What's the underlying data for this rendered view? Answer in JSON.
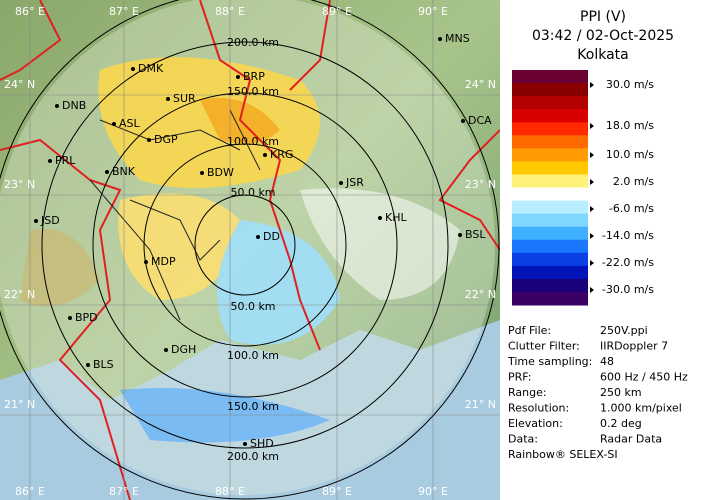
{
  "map": {
    "longitude_labels": [
      "86° E",
      "87° E",
      "88° E",
      "89° E",
      "90° E"
    ],
    "latitude_labels": [
      "24° N",
      "23° N",
      "22° N",
      "21° N"
    ],
    "range_labels_north": [
      "50.0 km",
      "100.0 km",
      "150.0 km",
      "200.0 km"
    ],
    "range_labels_south": [
      "50.0 km",
      "100.0 km",
      "150.0 km",
      "200.0 km"
    ],
    "stations": [
      "MNS",
      "DMK",
      "BRP",
      "DNB",
      "SUR",
      "ASL",
      "DGP",
      "DCA",
      "KRG",
      "PRL",
      "BNK",
      "BDW",
      "JSR",
      "JSD",
      "KHL",
      "BSL",
      "MDP",
      "DD",
      "BPD",
      "DGH",
      "BLS",
      "SHD"
    ]
  },
  "panel": {
    "title": [
      "PPI (V)",
      "03:42 / 02-Oct-2025",
      "Kolkata"
    ],
    "legend_colors": [
      "#6b0033",
      "#8a0000",
      "#b30000",
      "#d90000",
      "#ff2a00",
      "#ff6a00",
      "#ff9a00",
      "#ffc800",
      "#fff27a",
      "#ffffff",
      "#b8eeff",
      "#7fd6ff",
      "#3fb0ff",
      "#1a78ff",
      "#0a40e6",
      "#0014b8",
      "#1a007a",
      "#3a0066"
    ],
    "legend_labels": [
      "30.0 m/s",
      "18.0 m/s",
      "10.0 m/s",
      "2.0 m/s",
      "-6.0 m/s",
      "-14.0 m/s",
      "-22.0 m/s",
      "-30.0 m/s"
    ],
    "info": [
      [
        "Pdf File:",
        "250V.ppi"
      ],
      [
        "Clutter Filter:",
        "IIRDoppler 7"
      ],
      [
        "Time sampling:",
        "48"
      ],
      [
        "PRF:",
        "600 Hz / 450 Hz"
      ],
      [
        "Range:",
        "250 km"
      ],
      [
        "Resolution:",
        "1.000 km/pixel"
      ],
      [
        "Elevation:",
        "0.2 deg"
      ],
      [
        "Data:",
        "Radar Data"
      ]
    ],
    "footer": "Rainbow® SELEX-SI"
  }
}
